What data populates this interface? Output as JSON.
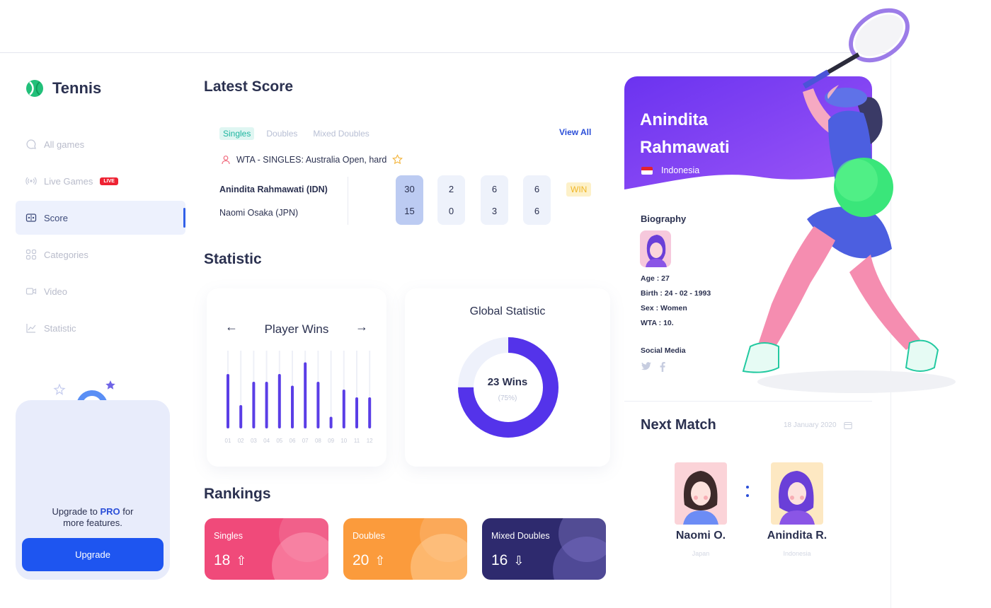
{
  "brand": {
    "name": "Tennis"
  },
  "nav": [
    {
      "label": "All games",
      "icon": "chat-bubble-icon"
    },
    {
      "label": "Live Games",
      "icon": "broadcast-icon",
      "badge": "LIVE"
    },
    {
      "label": "Score",
      "icon": "scoreboard-icon",
      "active": true
    },
    {
      "label": "Categories",
      "icon": "grid-icon"
    },
    {
      "label": "Video",
      "icon": "video-camera-icon"
    },
    {
      "label": "Statistic",
      "icon": "line-chart-icon"
    }
  ],
  "promo": {
    "text_before": "Upgrade to",
    "highlight": "PRO",
    "text_after": "for",
    "text_line2": "more features.",
    "button": "Upgrade"
  },
  "latest_score": {
    "title": "Latest Score",
    "tabs": [
      "Singles",
      "Doubles",
      "Mixed Doubles"
    ],
    "active_tab": "Singles",
    "view_all": "View All",
    "tournament": "WTA - SINGLES: Australia Open, hard",
    "players": [
      "Anindita Rahmawati (IDN)",
      "Naomi Osaka (JPN)"
    ],
    "sets": [
      [
        "30",
        "15"
      ],
      [
        "2",
        "0"
      ],
      [
        "6",
        "3"
      ],
      [
        "6",
        "6"
      ]
    ],
    "result": "WIN"
  },
  "statistic": {
    "title": "Statistic",
    "player_wins": {
      "title": "Player Wins",
      "prev": "←",
      "next": "→"
    },
    "global": {
      "title": "Global Statistic",
      "value": "23 Wins",
      "percent_label": "(75%)",
      "percent": 0.75
    }
  },
  "chart_data": {
    "type": "bar",
    "title": "Player Wins",
    "categories": [
      "01",
      "02",
      "03",
      "04",
      "05",
      "06",
      "07",
      "08",
      "09",
      "10",
      "11",
      "12"
    ],
    "values": [
      70,
      30,
      60,
      60,
      70,
      55,
      85,
      60,
      15,
      50,
      40,
      40
    ],
    "ylim": [
      0,
      100
    ],
    "bar_color": "#5a3ee6",
    "track_color": "#eef0f7",
    "grid": false
  },
  "rankings": {
    "title": "Rankings",
    "items": [
      {
        "label": "Singles",
        "value": "18",
        "trend": "up",
        "trend_icon": "⇧",
        "color": "#f04a7a"
      },
      {
        "label": "Doubles",
        "value": "20",
        "trend": "up",
        "trend_icon": "⇧",
        "color": "#fb9b3c"
      },
      {
        "label": "Mixed Doubles",
        "value": "16",
        "trend": "down",
        "trend_icon": "⇩",
        "color": "#2e2a6e"
      }
    ]
  },
  "profile": {
    "name": "Anindita Rahmawati",
    "country": "Indonesia",
    "biography_title": "Biography",
    "age": "Age : 27",
    "birth": "Birth : 24 - 02 - 1993",
    "sex": "Sex : Women",
    "wta": "WTA : 10.",
    "social_title": "Social Media",
    "social_icons": [
      "twitter-icon",
      "facebook-icon"
    ],
    "accent": "#7b3ff2"
  },
  "next_match": {
    "title": "Next Match",
    "date": "18 January 2020",
    "player1": {
      "name": "Naomi O.",
      "country": "Japan"
    },
    "player2": {
      "name": "Anindita R.",
      "country": "Indonesia"
    }
  }
}
